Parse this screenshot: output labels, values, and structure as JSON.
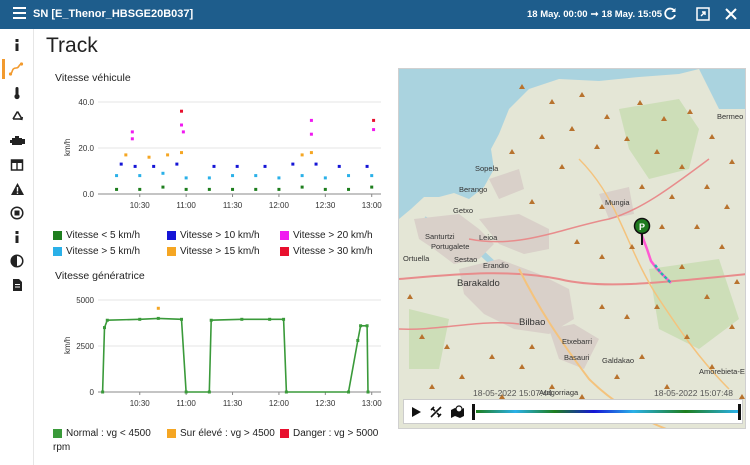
{
  "app": {
    "window_title": "SN [E_Thenor_HBSGE20B037]",
    "range_start": "18 May. 00:00",
    "range_end": "18 May. 15:05",
    "page_title": "Track"
  },
  "sidebar": {
    "items": [
      {
        "icon": "info-icon",
        "label": "i"
      },
      {
        "icon": "track-icon",
        "label": "track"
      },
      {
        "icon": "thermometer-icon",
        "label": "temperature"
      },
      {
        "icon": "recycle-icon",
        "label": "recycle"
      },
      {
        "icon": "engine-icon",
        "label": "engine"
      },
      {
        "icon": "layout-icon",
        "label": "layout"
      },
      {
        "icon": "warning-icon",
        "label": "alerts"
      },
      {
        "icon": "stop-icon",
        "label": "stop"
      },
      {
        "icon": "info-icon",
        "label": "i"
      },
      {
        "icon": "contrast-icon",
        "label": "contrast"
      },
      {
        "icon": "document-icon",
        "label": "document"
      }
    ]
  },
  "vehicle_speed": {
    "title": "Vitesse véhicule",
    "legend": [
      {
        "label": "Vitesse < 5 km/h",
        "color": "#1e7e1e"
      },
      {
        "label": "Vitesse > 10 km/h",
        "color": "#1515d6"
      },
      {
        "label": "Vitesse > 20 km/h",
        "color": "#f01af0"
      },
      {
        "label": "Vitesse > 5 km/h",
        "color": "#2ab0e8"
      },
      {
        "label": "Vitesse > 15 km/h",
        "color": "#f5a623"
      },
      {
        "label": "Vitesse > 30 km/h",
        "color": "#e8102e"
      }
    ]
  },
  "generator_speed": {
    "title": "Vitesse génératrice",
    "legend": [
      {
        "label": "Normal : vg < 4500",
        "color": "#3a9a3a"
      },
      {
        "label": "Sur élevé : vg > 4500",
        "color": "#f5a623"
      },
      {
        "label": "Danger : vg > 5000",
        "color": "#e8102e"
      }
    ],
    "legend_unit": "rpm"
  },
  "chart_data": [
    {
      "type": "scatter",
      "title": "Vitesse véhicule",
      "ylabel": "km/h",
      "ylim": [
        0,
        40
      ],
      "yticks": [
        "40.0",
        "20.0",
        "0.0"
      ],
      "xticks": [
        "10:30",
        "11:00",
        "11:30",
        "12:00",
        "12:30",
        "13:00"
      ],
      "series": [
        {
          "name": "Vitesse < 5 km/h",
          "color": "#1e7e1e",
          "values": [
            [
              10.25,
              2
            ],
            [
              10.5,
              2
            ],
            [
              10.75,
              3
            ],
            [
              11.0,
              2
            ],
            [
              11.25,
              2
            ],
            [
              11.5,
              2
            ],
            [
              11.75,
              2
            ],
            [
              12.0,
              2
            ],
            [
              12.25,
              3
            ],
            [
              12.5,
              2
            ],
            [
              12.75,
              2
            ],
            [
              13.0,
              3
            ]
          ]
        },
        {
          "name": "Vitesse > 5 km/h",
          "color": "#2ab0e8",
          "values": [
            [
              10.25,
              8
            ],
            [
              10.5,
              8
            ],
            [
              10.75,
              9
            ],
            [
              11.0,
              7
            ],
            [
              11.25,
              7
            ],
            [
              11.5,
              8
            ],
            [
              11.75,
              8
            ],
            [
              12.0,
              7
            ],
            [
              12.25,
              8
            ],
            [
              12.5,
              7
            ],
            [
              12.75,
              8
            ],
            [
              13.0,
              8
            ]
          ]
        },
        {
          "name": "Vitesse > 10 km/h",
          "color": "#1515d6",
          "values": [
            [
              10.3,
              13
            ],
            [
              10.45,
              12
            ],
            [
              10.65,
              12
            ],
            [
              10.9,
              13
            ],
            [
              11.3,
              12
            ],
            [
              11.55,
              12
            ],
            [
              11.85,
              12
            ],
            [
              12.15,
              13
            ],
            [
              12.4,
              13
            ],
            [
              12.65,
              12
            ],
            [
              12.95,
              12
            ]
          ]
        },
        {
          "name": "Vitesse > 15 km/h",
          "color": "#f5a623",
          "values": [
            [
              10.35,
              17
            ],
            [
              10.6,
              16
            ],
            [
              10.8,
              17
            ],
            [
              10.95,
              18
            ],
            [
              12.25,
              17
            ],
            [
              12.35,
              18
            ]
          ]
        },
        {
          "name": "Vitesse > 20 km/h",
          "color": "#f01af0",
          "values": [
            [
              10.42,
              27
            ],
            [
              10.42,
              24
            ],
            [
              10.95,
              30
            ],
            [
              10.97,
              27
            ],
            [
              12.35,
              32
            ],
            [
              12.35,
              26
            ],
            [
              13.02,
              28
            ]
          ]
        },
        {
          "name": "Vitesse > 30 km/h",
          "color": "#e8102e",
          "values": [
            [
              10.95,
              36
            ],
            [
              13.02,
              32
            ]
          ]
        }
      ]
    },
    {
      "type": "line",
      "title": "Vitesse génératrice",
      "ylabel": "km/h",
      "ylim": [
        0,
        5000
      ],
      "yticks": [
        "5000",
        "2500",
        "0"
      ],
      "xticks": [
        "10:30",
        "11:00",
        "11:30",
        "12:00",
        "12:30",
        "13:00"
      ],
      "series": [
        {
          "name": "Normal : vg < 4500",
          "color": "#3a9a3a",
          "values": [
            [
              10.1,
              0
            ],
            [
              10.12,
              3500
            ],
            [
              10.15,
              3900
            ],
            [
              10.5,
              3950
            ],
            [
              10.7,
              4000
            ],
            [
              10.95,
              3950
            ],
            [
              11.0,
              0
            ],
            [
              11.25,
              0
            ],
            [
              11.27,
              3900
            ],
            [
              11.6,
              3950
            ],
            [
              11.9,
              3950
            ],
            [
              12.05,
              3950
            ],
            [
              12.08,
              0
            ],
            [
              12.75,
              0
            ],
            [
              12.85,
              2800
            ],
            [
              12.88,
              3600
            ],
            [
              12.95,
              3600
            ],
            [
              12.96,
              0
            ]
          ]
        },
        {
          "name": "Sur élevé : vg > 4500",
          "color": "#f5a623",
          "values": [
            [
              10.7,
              4550
            ]
          ]
        }
      ]
    }
  ],
  "map": {
    "places": [
      "Bermeo",
      "Sopela",
      "Berango",
      "Getxo",
      "Mungia",
      "Santurtzi",
      "Portugalete",
      "Leioa",
      "Ortuella",
      "Sestao",
      "Erandio",
      "Barakaldo",
      "Bilbao",
      "Etxebarri",
      "Basauri",
      "Galdakao",
      "Arrigorriaga",
      "Amorebieta-Etxano"
    ],
    "start_time": "18-05-2022 15:07:44",
    "end_time": "18-05-2022 15:07:48"
  },
  "controls": {
    "play": "play-icon",
    "unlink": "unlink-icon",
    "map_pin": "map-pin-icon"
  }
}
